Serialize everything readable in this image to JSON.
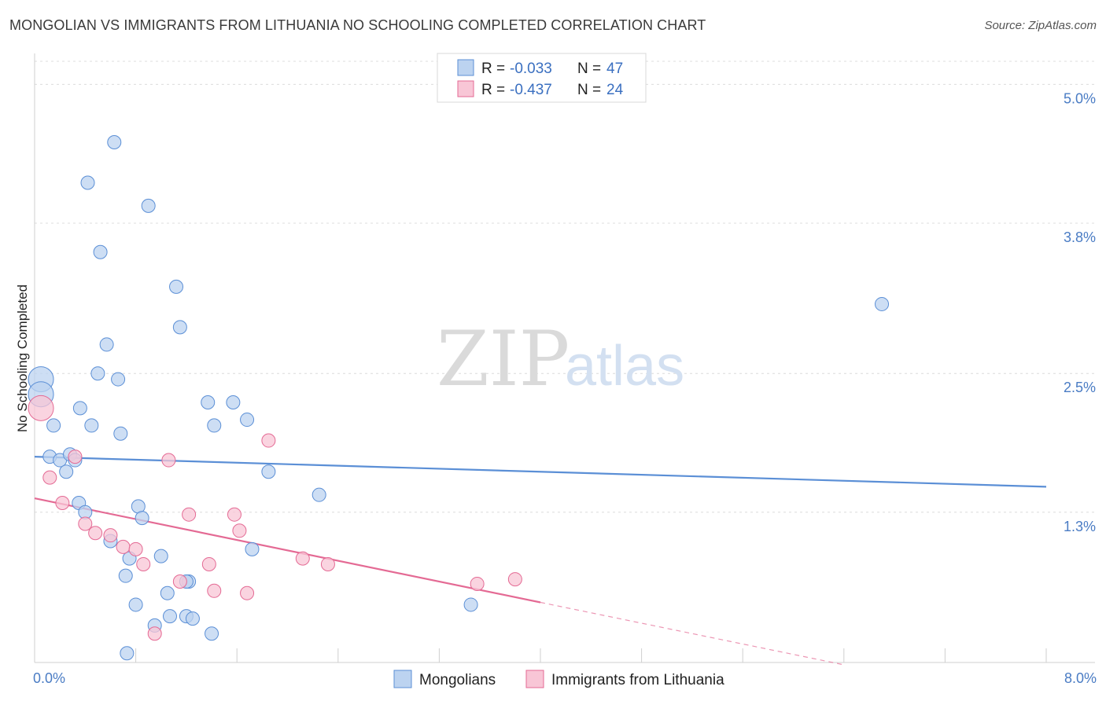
{
  "title": "MONGOLIAN VS IMMIGRANTS FROM LITHUANIA NO SCHOOLING COMPLETED CORRELATION CHART",
  "source": "Source: ZipAtlas.com",
  "watermark": {
    "zip": "ZIP",
    "atlas": "atlas"
  },
  "colors": {
    "blue": "#5b8fd6",
    "blue_fill": "#bcd3f0",
    "pink": "#e46a94",
    "pink_fill": "#f8c6d6"
  },
  "legend": {
    "rows": [
      {
        "r_label": "R =",
        "r_value": "-0.033",
        "n_label": "N =",
        "n_value": "47"
      },
      {
        "r_label": "R =",
        "r_value": "-0.437",
        "n_label": "N =",
        "n_value": "24"
      }
    ]
  },
  "chart_data": {
    "type": "scatter",
    "title": "MONGOLIAN VS IMMIGRANTS FROM LITHUANIA NO SCHOOLING COMPLETED CORRELATION CHART",
    "xlabel": "",
    "ylabel": "No Schooling Completed",
    "xlim": [
      0,
      8.0
    ],
    "ylim": [
      0,
      5.2
    ],
    "x_tick_labels": [
      "0.0%",
      "8.0%"
    ],
    "y_ticks": [
      1.3,
      2.5,
      3.8,
      5.0
    ],
    "y_tick_labels": [
      "1.3%",
      "2.5%",
      "3.8%",
      "5.0%"
    ],
    "grid": true,
    "legend_position": "top-center",
    "series": [
      {
        "name": "Mongolians",
        "color": "#5b8fd6",
        "points": [
          [
            0.05,
            2.45
          ],
          [
            0.05,
            2.32
          ],
          [
            0.12,
            1.78
          ],
          [
            0.15,
            2.05
          ],
          [
            0.2,
            1.75
          ],
          [
            0.25,
            1.65
          ],
          [
            0.28,
            1.8
          ],
          [
            0.32,
            1.75
          ],
          [
            0.35,
            1.38
          ],
          [
            0.36,
            2.2
          ],
          [
            0.4,
            1.3
          ],
          [
            0.42,
            4.15
          ],
          [
            0.45,
            2.05
          ],
          [
            0.5,
            2.5
          ],
          [
            0.52,
            3.55
          ],
          [
            0.57,
            2.75
          ],
          [
            0.6,
            1.05
          ],
          [
            0.63,
            4.5
          ],
          [
            0.66,
            2.45
          ],
          [
            0.68,
            1.98
          ],
          [
            0.72,
            0.75
          ],
          [
            0.75,
            0.9
          ],
          [
            0.8,
            0.5
          ],
          [
            0.82,
            1.35
          ],
          [
            0.85,
            1.25
          ],
          [
            0.9,
            3.95
          ],
          [
            0.95,
            0.32
          ],
          [
            1.0,
            0.92
          ],
          [
            1.05,
            0.6
          ],
          [
            1.07,
            0.4
          ],
          [
            1.12,
            3.25
          ],
          [
            1.15,
            2.9
          ],
          [
            1.2,
            0.4
          ],
          [
            1.22,
            0.7
          ],
          [
            1.25,
            0.38
          ],
          [
            1.37,
            2.25
          ],
          [
            1.4,
            0.25
          ],
          [
            1.42,
            2.05
          ],
          [
            1.57,
            2.25
          ],
          [
            1.68,
            2.1
          ],
          [
            1.72,
            0.98
          ],
          [
            1.85,
            1.65
          ],
          [
            2.25,
            1.45
          ],
          [
            3.45,
            0.5
          ],
          [
            6.7,
            3.1
          ],
          [
            1.2,
            0.7
          ],
          [
            0.73,
            0.08
          ]
        ],
        "trend": {
          "x": [
            0.0,
            8.0
          ],
          "y": [
            1.78,
            1.52
          ]
        }
      },
      {
        "name": "Immigrants from Lithuania",
        "color": "#e46a94",
        "points": [
          [
            0.05,
            2.2
          ],
          [
            0.12,
            1.6
          ],
          [
            0.22,
            1.38
          ],
          [
            0.32,
            1.78
          ],
          [
            0.4,
            1.2
          ],
          [
            0.48,
            1.12
          ],
          [
            0.6,
            1.1
          ],
          [
            0.7,
            1.0
          ],
          [
            0.8,
            0.98
          ],
          [
            0.86,
            0.85
          ],
          [
            0.95,
            0.25
          ],
          [
            1.06,
            1.75
          ],
          [
            1.15,
            0.7
          ],
          [
            1.22,
            1.28
          ],
          [
            1.38,
            0.85
          ],
          [
            1.42,
            0.62
          ],
          [
            1.58,
            1.28
          ],
          [
            1.62,
            1.14
          ],
          [
            1.68,
            0.6
          ],
          [
            1.85,
            1.92
          ],
          [
            2.12,
            0.9
          ],
          [
            2.32,
            0.85
          ],
          [
            3.5,
            0.68
          ],
          [
            3.8,
            0.72
          ]
        ],
        "trend": {
          "x": [
            0.0,
            4.0
          ],
          "y": [
            1.42,
            0.52
          ]
        },
        "trend_extension": {
          "x": [
            4.0,
            6.4
          ],
          "y": [
            0.52,
            -0.02
          ]
        }
      }
    ]
  },
  "bottom_legend": [
    "Mongolians",
    "Immigrants from Lithuania"
  ]
}
